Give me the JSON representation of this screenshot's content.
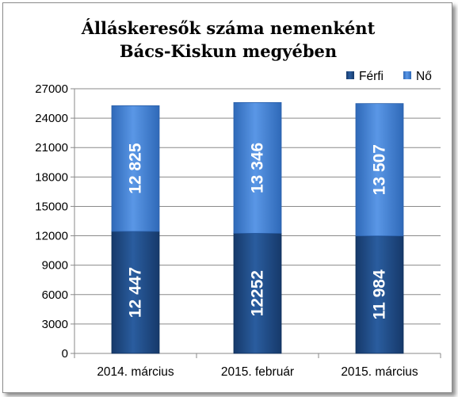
{
  "chart_data": {
    "type": "bar",
    "stacked": true,
    "title_lines": [
      "Álláskeresők száma nemenként",
      "Bács-Kiskun megyében"
    ],
    "categories": [
      "2014. március",
      "2015. február",
      "2015. március"
    ],
    "series": [
      {
        "name": "Férfi",
        "values": [
          12447,
          12252,
          11984
        ],
        "labels": [
          "12 447",
          "12252",
          "11 984"
        ],
        "color": "#1f4e8c"
      },
      {
        "name": "Nő",
        "values": [
          12825,
          13346,
          13507
        ],
        "labels": [
          "12 825",
          "13 346",
          "13 507"
        ],
        "color": "#3f7fd6"
      }
    ],
    "yticks": [
      "0",
      "3000",
      "6000",
      "9000",
      "12000",
      "15000",
      "18000",
      "21000",
      "24000",
      "27000"
    ],
    "ylim": [
      0,
      27000
    ],
    "grid": true,
    "legend": "top-right"
  }
}
